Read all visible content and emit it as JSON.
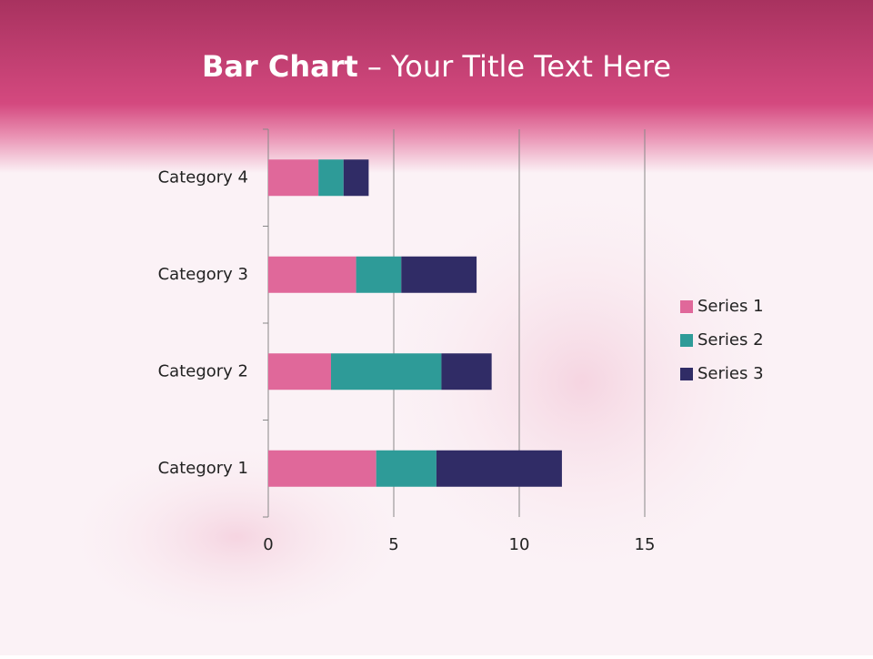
{
  "chart_data": {
    "type": "bar",
    "orientation": "horizontal",
    "stacked": true,
    "title": {
      "bold": "Bar Chart",
      "rest": "– Your Title Text Here"
    },
    "categories": [
      "Category 1",
      "Category 2",
      "Category 3",
      "Category 4"
    ],
    "series": [
      {
        "name": "Series 1",
        "color": "#e0689a",
        "values": [
          4.3,
          2.5,
          3.5,
          2
        ]
      },
      {
        "name": "Series 2",
        "color": "#2e9b98",
        "values": [
          2.4,
          4.4,
          1.8,
          1
        ]
      },
      {
        "name": "Series 3",
        "color": "#302c66",
        "values": [
          5,
          2,
          3,
          1
        ]
      }
    ],
    "xlim": [
      0,
      15
    ],
    "xticks": [
      0,
      5,
      10,
      15
    ],
    "grid": true,
    "legend": "right"
  }
}
